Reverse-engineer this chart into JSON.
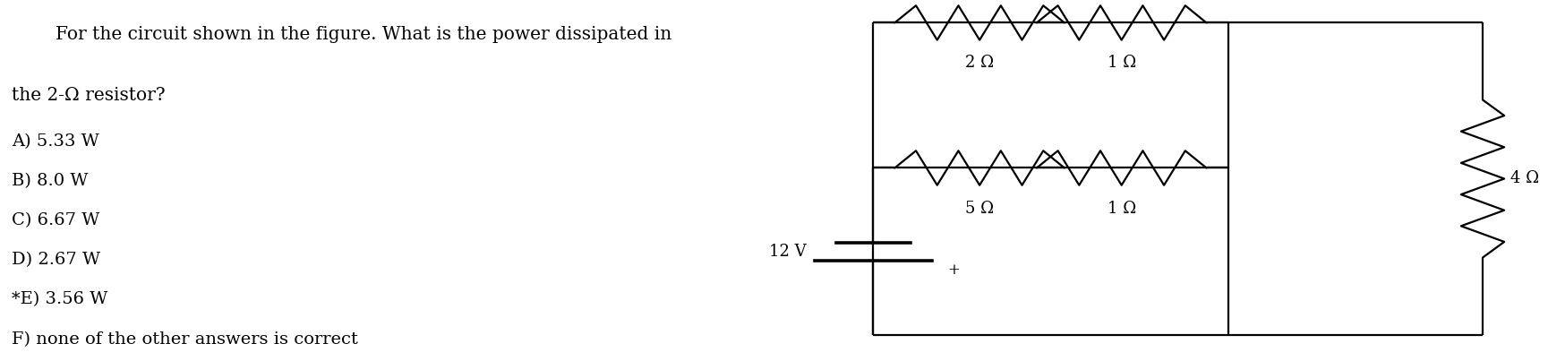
{
  "background_color": "#ffffff",
  "text_question_line1": "For the circuit shown in the figure. What is the power dissipated in",
  "text_question_line2": "the 2-Ω resistor?",
  "answers": [
    "A) 5.33 W",
    "B) 8.0 W",
    "C) 6.67 W",
    "D) 2.67 W",
    "*E) 3.56 W",
    "F) none of the other answers is correct"
  ],
  "text_color": "#000000",
  "r1_label": "2 Ω",
  "r2_label": "1 Ω",
  "r3_label": "5 Ω",
  "r4_label": "1 Ω",
  "r5_label": "4 Ω",
  "v_label": "12 V",
  "fig_width": 17.29,
  "fig_height": 4.03,
  "font_size_question": 14.5,
  "font_size_answer": 14,
  "font_size_label": 13,
  "lw": 1.6
}
